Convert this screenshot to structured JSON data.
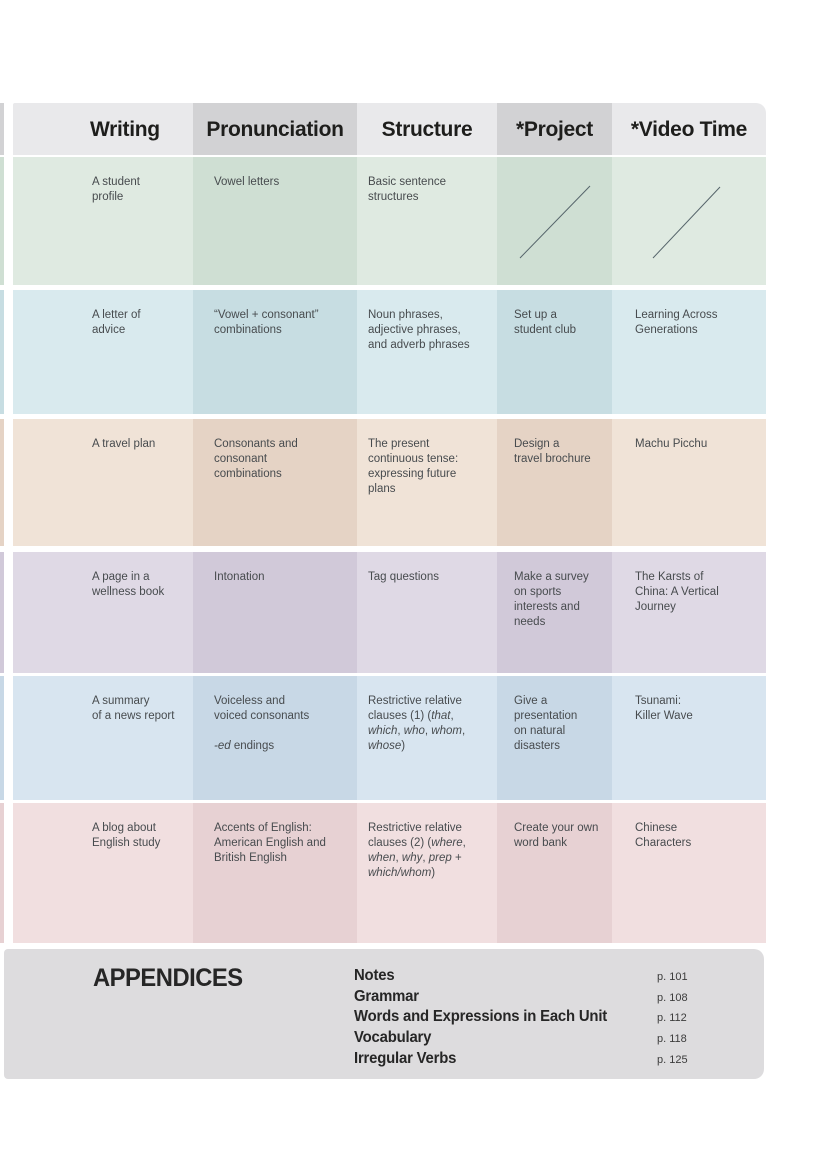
{
  "page": {
    "background": "#ffffff"
  },
  "header": {
    "light": "#e9e9eb",
    "dark": "#d2d2d4",
    "text_color": "#1e1e1c",
    "columns": [
      {
        "label": "Writing"
      },
      {
        "label": "Pronunciation"
      },
      {
        "label": "Structure"
      },
      {
        "label": "*Project"
      },
      {
        "label": "*Video Time"
      }
    ]
  },
  "table": {
    "rows": [
      {
        "theme": "green",
        "light": "#dfeae1",
        "dark": "#cfdfd3",
        "cells": [
          {
            "text": "A student\nprofile"
          },
          {
            "text": "Vowel letters"
          },
          {
            "text": "Basic sentence\nstructures"
          },
          {
            "slash": true
          },
          {
            "slash": true
          }
        ]
      },
      {
        "theme": "cyan-blue",
        "light": "#d9eaee",
        "dark": "#c7dde2",
        "cells": [
          {
            "text": "A letter of\nadvice"
          },
          {
            "text": "“Vowel + consonant”\ncombinations"
          },
          {
            "text": "Noun phrases,\nadjective phrases,\nand adverb phrases"
          },
          {
            "text": "Set up a\nstudent club"
          },
          {
            "text": "Learning Across\nGenerations"
          }
        ]
      },
      {
        "theme": "tan",
        "light": "#f0e3d7",
        "dark": "#e5d3c5",
        "cells": [
          {
            "text": "A travel plan"
          },
          {
            "text": "Consonants and\nconsonant\ncombinations"
          },
          {
            "text": "The present\ncontinuous tense:\nexpressing future\nplans"
          },
          {
            "text": "Design a\ntravel brochure"
          },
          {
            "text": "Machu Picchu"
          }
        ]
      },
      {
        "theme": "purple",
        "light": "#dfd9e5",
        "dark": "#d1c9d9",
        "cells": [
          {
            "text": "A page in a\nwellness book"
          },
          {
            "text": "Intonation"
          },
          {
            "text": "Tag questions"
          },
          {
            "text": "Make a survey\non sports\ninterests and\nneeds"
          },
          {
            "text": "The Karsts of\nChina: A Vertical\nJourney"
          }
        ]
      },
      {
        "theme": "blue",
        "light": "#d8e5f0",
        "dark": "#c8d8e6",
        "cells": [
          {
            "text": "A summary\nof a news report"
          },
          {
            "runs": [
              {
                "text": "Voiceless and\nvoiced consonants\n\n"
              },
              {
                "text": "-ed",
                "italic": true
              },
              {
                "text": " endings"
              }
            ]
          },
          {
            "runs": [
              {
                "text": "Restrictive relative\nclauses (1) ("
              },
              {
                "text": "that",
                "italic": true
              },
              {
                "text": ",\n"
              },
              {
                "text": "which",
                "italic": true
              },
              {
                "text": ", "
              },
              {
                "text": "who",
                "italic": true
              },
              {
                "text": ", "
              },
              {
                "text": "whom",
                "italic": true
              },
              {
                "text": ",\n"
              },
              {
                "text": "whose",
                "italic": true
              },
              {
                "text": ")"
              }
            ]
          },
          {
            "text": "Give a\npresentation\non natural\ndisasters"
          },
          {
            "text": "Tsunami:\nKiller Wave"
          }
        ]
      },
      {
        "theme": "pink",
        "light": "#f1dfe0",
        "dark": "#e7d1d3",
        "cells": [
          {
            "text": "A blog about\nEnglish study"
          },
          {
            "text": "Accents of English:\nAmerican English and\nBritish English"
          },
          {
            "runs": [
              {
                "text": "Restrictive relative\nclauses (2) ("
              },
              {
                "text": "where",
                "italic": true
              },
              {
                "text": ",\n"
              },
              {
                "text": "when",
                "italic": true
              },
              {
                "text": ", "
              },
              {
                "text": "why",
                "italic": true
              },
              {
                "text": ", "
              },
              {
                "text": "prep",
                "italic": true
              },
              {
                "text": " +\n"
              },
              {
                "text": "which/whom",
                "italic": true
              },
              {
                "text": ")"
              }
            ]
          },
          {
            "text": "Create your own\nword bank"
          },
          {
            "text": "Chinese\nCharacters"
          }
        ]
      }
    ]
  },
  "appendices": {
    "title": "APPENDICES",
    "background": "#dddcde",
    "items": [
      {
        "label": "Notes",
        "page": "p. 101"
      },
      {
        "label": "Grammar",
        "page": "p. 108"
      },
      {
        "label": "Words and Expressions in Each Unit",
        "page": "p. 112"
      },
      {
        "label": "Vocabulary",
        "page": "p. 118"
      },
      {
        "label": "Irregular Verbs",
        "page": "p. 125"
      }
    ]
  }
}
